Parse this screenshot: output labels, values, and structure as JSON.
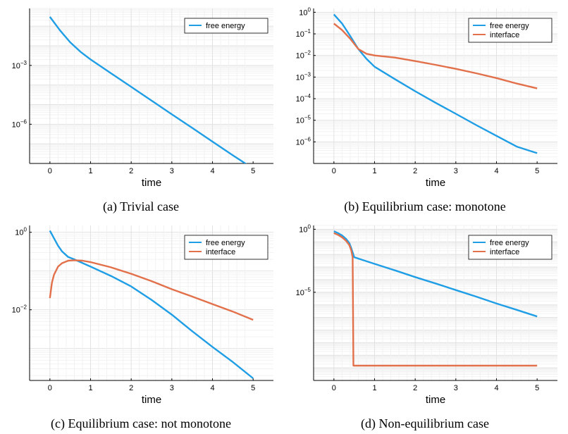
{
  "colors": {
    "free_energy": "#1f9ee6",
    "interface": "#e2704a"
  },
  "chart_data": [
    {
      "id": "a",
      "type": "line",
      "caption": "(a) Trivial case",
      "xlabel": "time",
      "ylabel": "",
      "xlim": [
        -0.5,
        5.5
      ],
      "ylim": [
        1e-08,
        0.8
      ],
      "yscale": "log",
      "xticks": [
        0,
        1,
        2,
        3,
        4,
        5
      ],
      "xtick_labels": [
        "0",
        "1",
        "2",
        "3",
        "4",
        "5"
      ],
      "yticks": [
        0.001,
        1e-06
      ],
      "ytick_labels": [
        {
          "base": "10",
          "exp": "−3"
        },
        {
          "base": "10",
          "exp": "−6"
        }
      ],
      "grid": true,
      "legend": "top-right",
      "series": [
        {
          "name": "free energy",
          "color": "#1f9ee6",
          "x": [
            0,
            0.25,
            0.5,
            0.75,
            1,
            1.5,
            2,
            2.5,
            3,
            3.5,
            4,
            4.5,
            5
          ],
          "y": [
            0.3,
            0.06,
            0.015,
            0.005,
            0.002,
            0.0004,
            8e-05,
            1.6e-05,
            3.2e-06,
            6.5e-07,
            1.3e-07,
            2.6e-08,
            5.5e-09
          ]
        }
      ]
    },
    {
      "id": "b",
      "type": "line",
      "caption": "(b) Equilibrium case: monotone",
      "xlabel": "time",
      "ylabel": "",
      "xlim": [
        -0.5,
        5.5
      ],
      "ylim": [
        1e-07,
        1.5
      ],
      "yscale": "log",
      "xticks": [
        0,
        1,
        2,
        3,
        4,
        5
      ],
      "xtick_labels": [
        "0",
        "1",
        "2",
        "3",
        "4",
        "5"
      ],
      "yticks": [
        1,
        0.1,
        0.01,
        0.001,
        0.0001,
        1e-05,
        1e-06
      ],
      "ytick_labels": [
        {
          "base": "10",
          "exp": "0"
        },
        {
          "base": "10",
          "exp": "−1"
        },
        {
          "base": "10",
          "exp": "−2"
        },
        {
          "base": "10",
          "exp": "−3"
        },
        {
          "base": "10",
          "exp": "−4"
        },
        {
          "base": "10",
          "exp": "−5"
        },
        {
          "base": "10",
          "exp": "−6"
        }
      ],
      "grid": true,
      "legend": "top-right",
      "series": [
        {
          "name": "free energy",
          "color": "#1f9ee6",
          "x": [
            0,
            0.2,
            0.4,
            0.6,
            0.8,
            1,
            1.5,
            2,
            2.5,
            3,
            3.5,
            4,
            4.5,
            5
          ],
          "y": [
            0.8,
            0.3,
            0.08,
            0.02,
            0.007,
            0.003,
            0.0008,
            0.00022,
            6.5e-05,
            2e-05,
            6e-06,
            1.9e-06,
            6e-07,
            3e-07
          ]
        },
        {
          "name": "interface",
          "color": "#e2704a",
          "x": [
            0,
            0.2,
            0.4,
            0.6,
            0.8,
            1,
            1.5,
            2,
            2.5,
            3,
            3.5,
            4,
            4.5,
            5
          ],
          "y": [
            0.3,
            0.15,
            0.06,
            0.02,
            0.012,
            0.01,
            0.008,
            0.0055,
            0.0037,
            0.0024,
            0.0015,
            0.0009,
            0.0005,
            0.0003
          ]
        }
      ]
    },
    {
      "id": "c",
      "type": "line",
      "caption": "(c) Equilibrium case: not monotone",
      "xlabel": "time",
      "ylabel": "",
      "xlim": [
        -0.5,
        5.5
      ],
      "ylim": [
        0.00015,
        1.5
      ],
      "yscale": "log",
      "xticks": [
        0,
        1,
        2,
        3,
        4,
        5
      ],
      "xtick_labels": [
        "0",
        "1",
        "2",
        "3",
        "4",
        "5"
      ],
      "yticks": [
        1,
        0.01
      ],
      "ytick_labels": [
        {
          "base": "10",
          "exp": "0"
        },
        {
          "base": "10",
          "exp": "−2"
        }
      ],
      "grid": true,
      "legend": "top-right",
      "series": [
        {
          "name": "free energy",
          "color": "#1f9ee6",
          "x": [
            0,
            0.1,
            0.2,
            0.3,
            0.45,
            0.6,
            1,
            1.5,
            2,
            2.5,
            3,
            3.5,
            4,
            4.5,
            5
          ],
          "y": [
            1.1,
            0.7,
            0.45,
            0.32,
            0.23,
            0.2,
            0.13,
            0.075,
            0.04,
            0.018,
            0.0075,
            0.0028,
            0.0011,
            0.00045,
            0.00017
          ]
        },
        {
          "name": "interface",
          "color": "#e2704a",
          "x": [
            0,
            0.05,
            0.1,
            0.2,
            0.3,
            0.45,
            0.6,
            0.8,
            1,
            1.5,
            2,
            2.5,
            3,
            3.5,
            4,
            4.5,
            5
          ],
          "y": [
            0.02,
            0.05,
            0.08,
            0.13,
            0.16,
            0.185,
            0.19,
            0.185,
            0.17,
            0.125,
            0.085,
            0.055,
            0.034,
            0.022,
            0.014,
            0.009,
            0.0055
          ]
        }
      ]
    },
    {
      "id": "d",
      "type": "line",
      "caption": "(d) Non-equilibrium case",
      "xlabel": "time",
      "ylabel": "",
      "xlim": [
        -0.5,
        5.5
      ],
      "ylim": [
        1e-12,
        2
      ],
      "yscale": "log",
      "xticks": [
        0,
        1,
        2,
        3,
        4,
        5
      ],
      "xtick_labels": [
        "0",
        "1",
        "2",
        "3",
        "4",
        "5"
      ],
      "yticks": [
        1,
        1e-05
      ],
      "ytick_labels": [
        {
          "base": "10",
          "exp": "0"
        },
        {
          "base": "10",
          "exp": "−5"
        }
      ],
      "grid": true,
      "legend": "top-right",
      "series": [
        {
          "name": "free energy",
          "color": "#1f9ee6",
          "x": [
            0,
            0.1,
            0.2,
            0.3,
            0.38,
            0.43,
            0.47,
            0.5,
            1,
            1.5,
            2,
            2.5,
            3,
            3.5,
            4,
            4.5,
            5
          ],
          "y": [
            0.7,
            0.5,
            0.32,
            0.17,
            0.08,
            0.03,
            0.012,
            0.006,
            0.0018,
            0.00055,
            0.00016,
            5e-05,
            1.5e-05,
            4.5e-06,
            1.3e-06,
            4e-07,
            1.2e-07
          ]
        },
        {
          "name": "interface",
          "color": "#e2704a",
          "x": [
            0,
            0.1,
            0.2,
            0.3,
            0.38,
            0.43,
            0.46,
            0.47,
            0.48,
            5
          ],
          "y": [
            0.5,
            0.36,
            0.23,
            0.12,
            0.055,
            0.02,
            0.006,
            1e-06,
            1.5e-11,
            1.5e-11
          ]
        }
      ]
    }
  ]
}
